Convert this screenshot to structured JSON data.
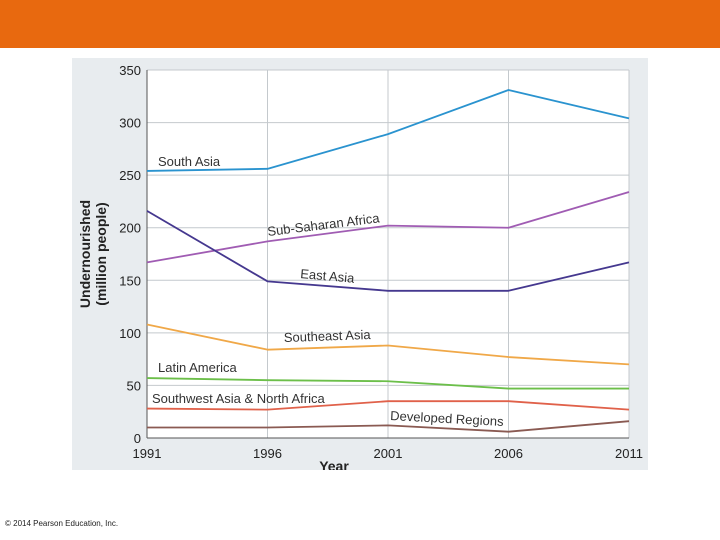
{
  "slide": {
    "header_color": "#e8690f",
    "copyright": "© 2014 Pearson Education, Inc."
  },
  "chart_data": {
    "type": "line",
    "title": "",
    "xlabel": "Year",
    "ylabel": "Undernourished (million people)",
    "ylabel_lines": [
      "Undernourished",
      "(million people)"
    ],
    "x": [
      1991,
      1996,
      2001,
      2006,
      2011
    ],
    "x_ticks": [
      "1991",
      "1996",
      "2001",
      "2006",
      "2011"
    ],
    "y_ticks": [
      "0",
      "50",
      "100",
      "150",
      "200",
      "250",
      "300",
      "350"
    ],
    "ylim": [
      0,
      350
    ],
    "grid": true,
    "legend": "inline labels",
    "series": [
      {
        "name": "South Asia",
        "color": "#2a93cf",
        "values": [
          254,
          256,
          289,
          331,
          304
        ]
      },
      {
        "name": "Sub-Saharan Africa",
        "color": "#a05cb3",
        "values": [
          167,
          187,
          202,
          200,
          234
        ]
      },
      {
        "name": "East Asia",
        "color": "#45388f",
        "values": [
          216,
          149,
          140,
          140,
          167
        ]
      },
      {
        "name": "Southeast Asia",
        "color": "#f0a848",
        "values": [
          108,
          84,
          88,
          77,
          70
        ]
      },
      {
        "name": "Latin America",
        "color": "#6cbf4a",
        "values": [
          57,
          55,
          54,
          47,
          47
        ]
      },
      {
        "name": "Southwest Asia & North Africa",
        "color": "#e0614a",
        "values": [
          28,
          27,
          35,
          35,
          27
        ]
      },
      {
        "name": "Developed Regions",
        "color": "#8a5a52",
        "values": [
          10,
          10,
          12,
          6,
          16
        ]
      }
    ]
  }
}
